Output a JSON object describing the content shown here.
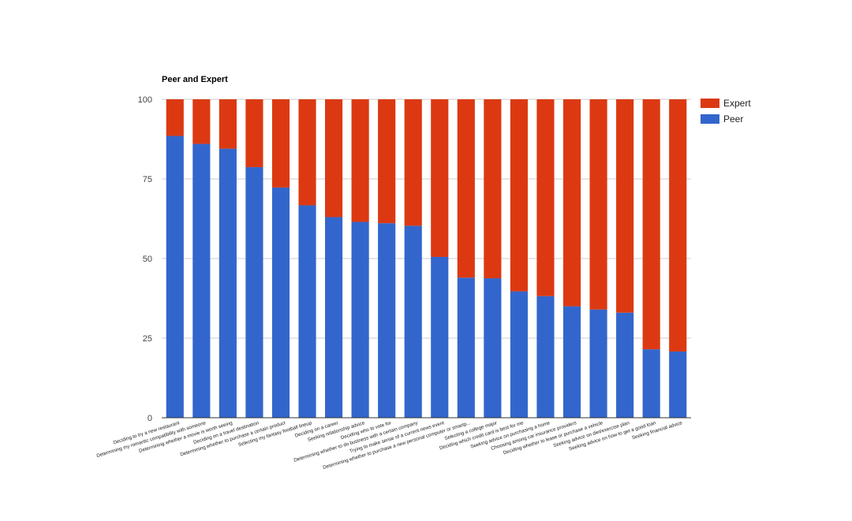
{
  "chart_data": {
    "type": "bar",
    "stacked": true,
    "title": "Peer and Expert",
    "xlabel": "",
    "ylabel": "",
    "ylim": [
      0,
      100
    ],
    "yticks": [
      "0",
      "25",
      "50",
      "75",
      "100"
    ],
    "legend_position": "right",
    "categories": [
      "Deciding to try a new restaurant",
      "Determining my romantic compatibility with someone",
      "Determining whether a movie is worth seeing",
      "Deciding on a travel destination",
      "Determining whether to purchase a certain product",
      "Selecting my fantasy football lineup",
      "Deciding on a career",
      "Seeking relationship advice",
      "Deciding who to vote for",
      "Determining whether to do business with a certain company",
      "Trying to make sense of a current news event",
      "Determining whether to purchase a new personal computer or smartp...",
      "Selecting a college major",
      "Deciding which credit card is best for me",
      "Seeking advice on purchasing a home",
      "Choosing among car insurance providers",
      "Deciding whether to lease or purchase a vehicle",
      "Seeking advice on diet/exercise plan",
      "Seeking advice on how to get a good loan",
      "Seeking financial advice"
    ],
    "series": [
      {
        "name": "Peer",
        "color": "#3366cc",
        "values": [
          88.5,
          86,
          84.5,
          78.7,
          72.3,
          66.7,
          63,
          61.5,
          61.1,
          60.3,
          50.5,
          44,
          43.8,
          39.7,
          38.2,
          35,
          34,
          33,
          21.5,
          20.8
        ]
      },
      {
        "name": "Expert",
        "color": "#dc3912",
        "values": [
          11.5,
          14,
          15.5,
          21.3,
          27.7,
          33.3,
          37,
          38.5,
          38.9,
          39.7,
          49.5,
          56,
          56.2,
          60.3,
          61.8,
          65,
          66,
          67,
          78.5,
          79.2
        ]
      }
    ],
    "legend": [
      "Expert",
      "Peer"
    ]
  }
}
